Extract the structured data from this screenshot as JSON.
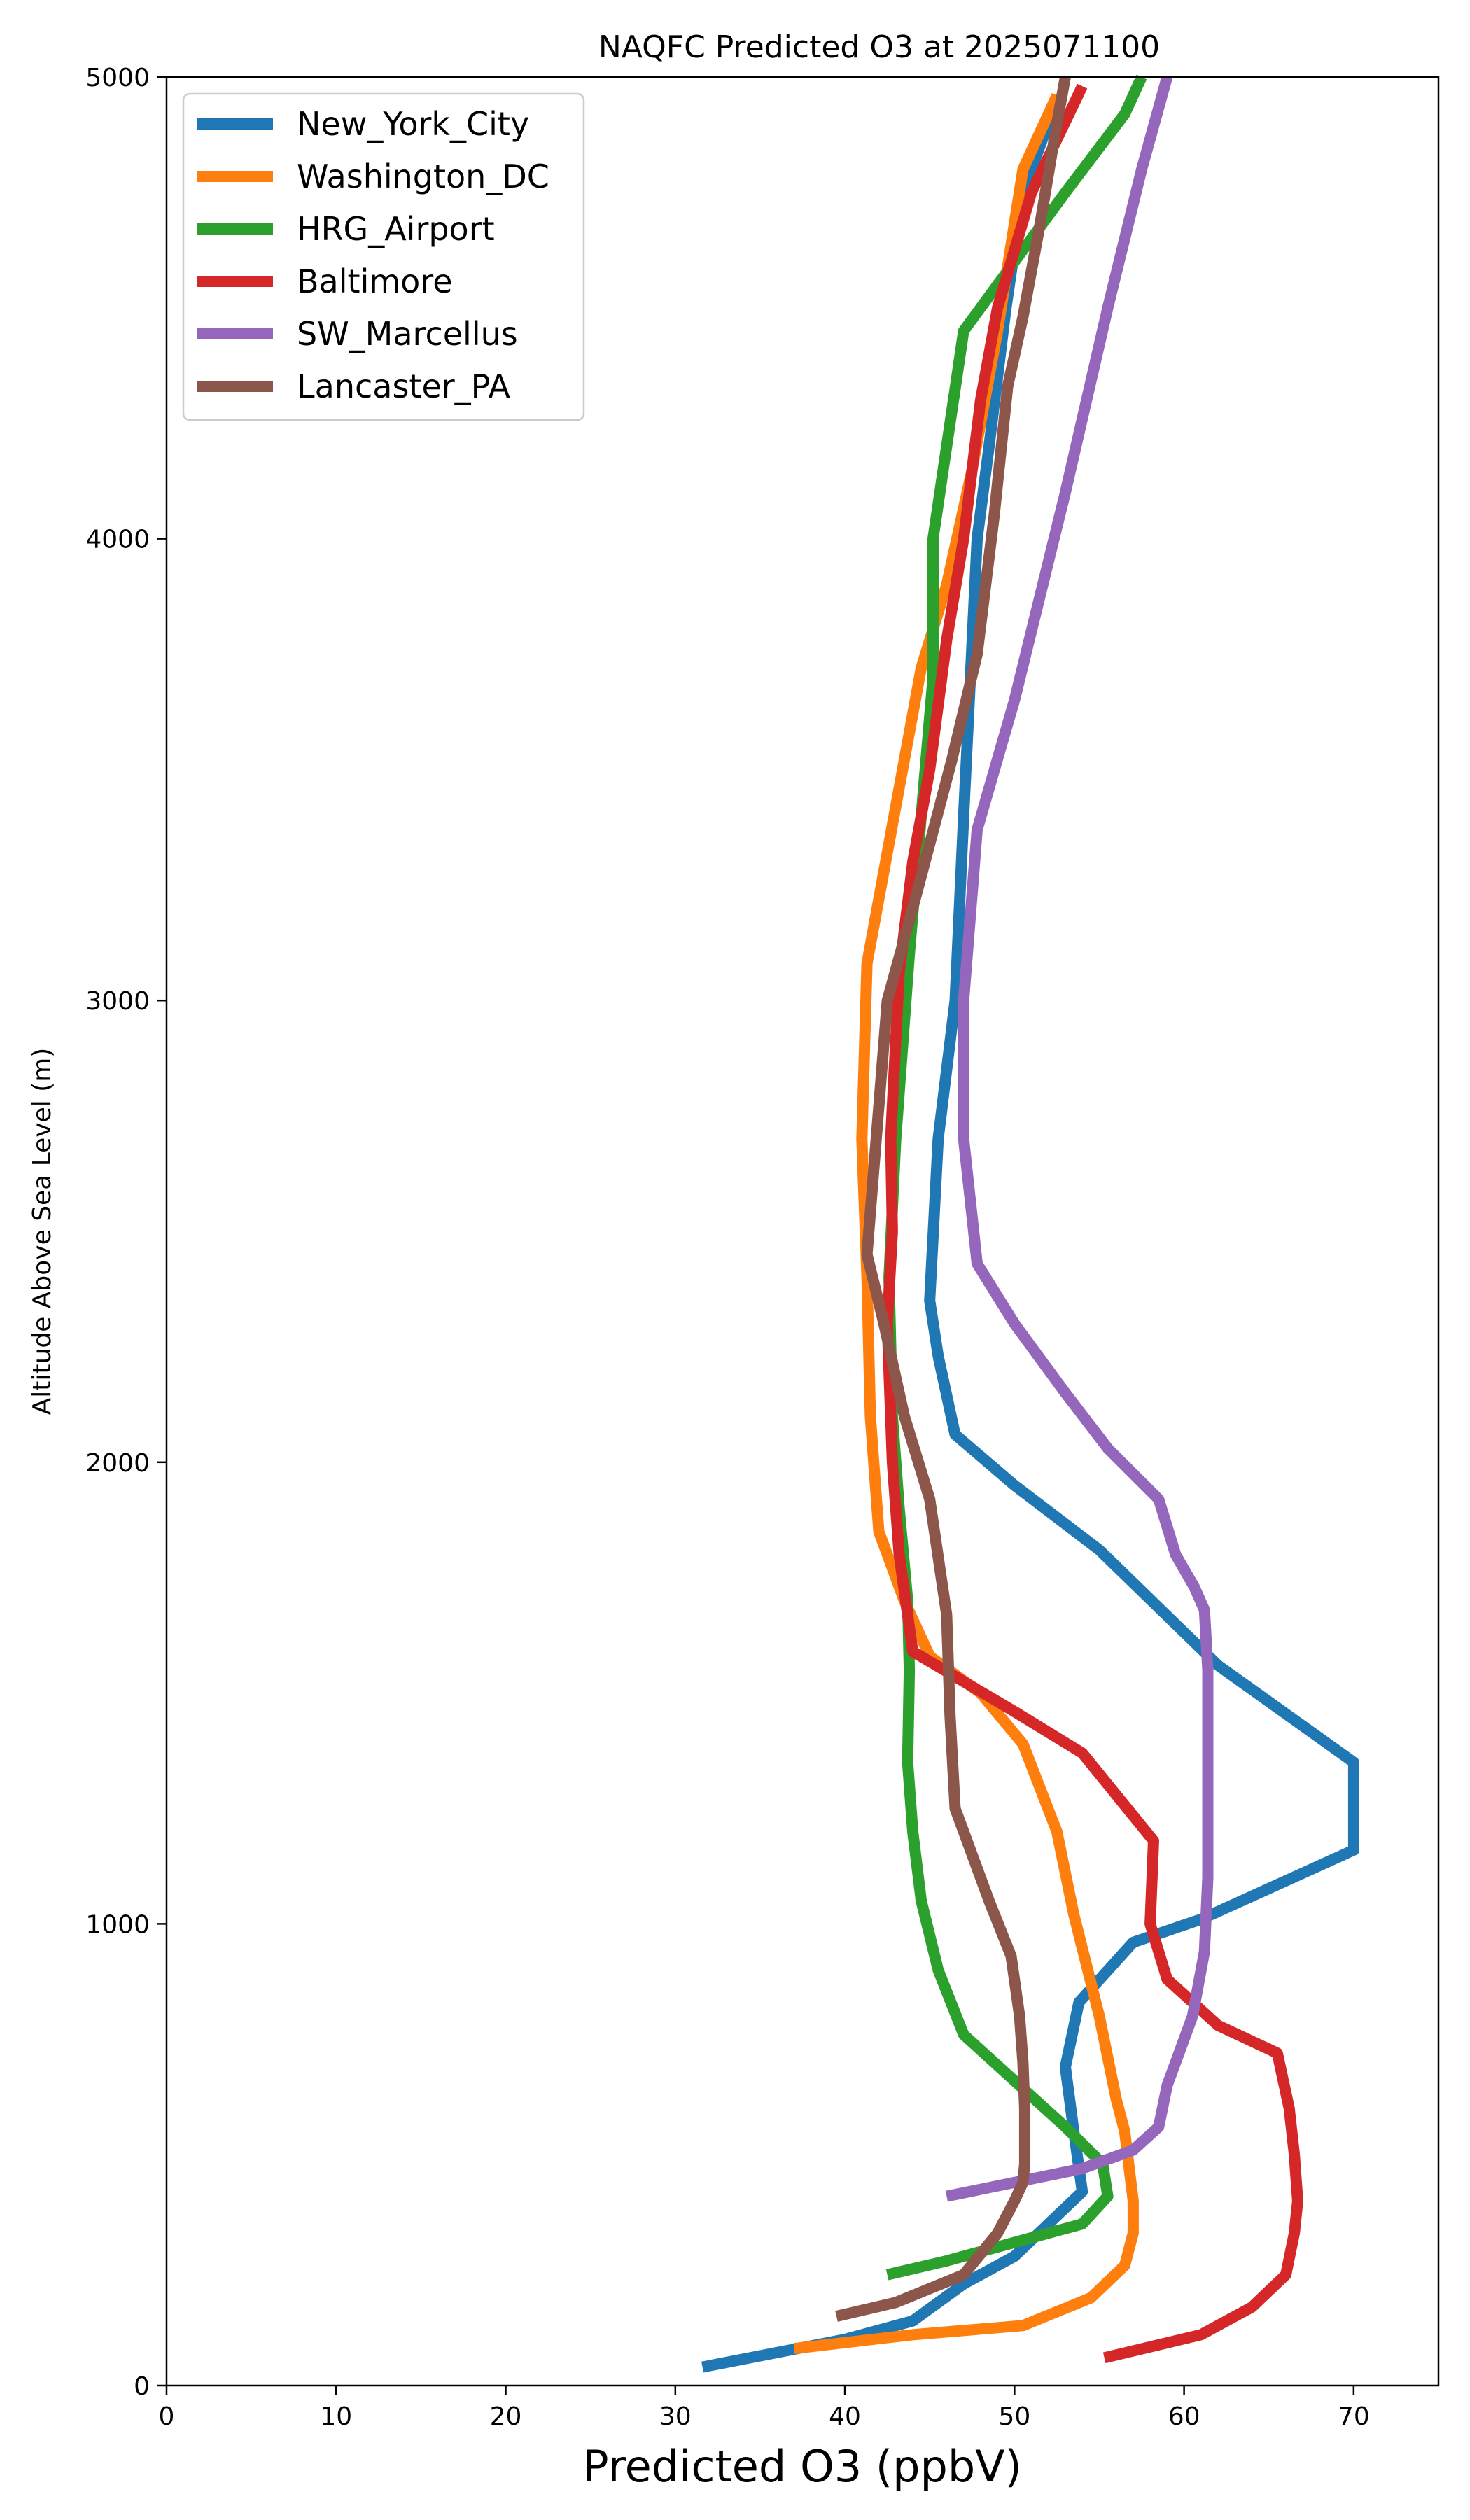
{
  "chart_data": {
    "type": "line",
    "title": "NAQFC Predicted O3 at 2025071100",
    "xlabel": "Predicted O3 (ppbV)",
    "ylabel": "Altitude Above Sea Level (m)",
    "xlim": [
      0,
      75
    ],
    "ylim": [
      0,
      5000
    ],
    "xticks": [
      0,
      10,
      20,
      30,
      40,
      50,
      60,
      70
    ],
    "yticks": [
      0,
      1000,
      2000,
      3000,
      4000,
      5000
    ],
    "x_tick_labels": [
      "0",
      "10",
      "20",
      "30",
      "40",
      "50",
      "60",
      "70"
    ],
    "y_tick_labels": [
      "0",
      "1000",
      "2000",
      "3000",
      "4000",
      "5000"
    ],
    "grid": false,
    "legend_position": "top-left",
    "series": [
      {
        "name": "New_York_City",
        "color": "#1f77b4",
        "points": [
          [
            31.6,
            40
          ],
          [
            40,
            100
          ],
          [
            44,
            140
          ],
          [
            47,
            220
          ],
          [
            50,
            280
          ],
          [
            52,
            350
          ],
          [
            54,
            420
          ],
          [
            53.5,
            550
          ],
          [
            53,
            690
          ],
          [
            53.8,
            830
          ],
          [
            57,
            960
          ],
          [
            61,
            1010
          ],
          [
            70,
            1160
          ],
          [
            70,
            1350
          ],
          [
            62,
            1560
          ],
          [
            55,
            1810
          ],
          [
            50,
            1950
          ],
          [
            46.5,
            2060
          ],
          [
            45.5,
            2230
          ],
          [
            45,
            2350
          ],
          [
            45.5,
            2700
          ],
          [
            46.5,
            3000
          ],
          [
            47,
            3400
          ],
          [
            47.8,
            4000
          ],
          [
            48.5,
            4200
          ],
          [
            49.5,
            4500
          ],
          [
            50.5,
            4750
          ],
          [
            52.5,
            4950
          ]
        ]
      },
      {
        "name": "Washington_DC",
        "color": "#ff7f0e",
        "points": [
          [
            37,
            80
          ],
          [
            44,
            110
          ],
          [
            50.5,
            130
          ],
          [
            54.5,
            190
          ],
          [
            56.5,
            260
          ],
          [
            57,
            330
          ],
          [
            57,
            400
          ],
          [
            56.5,
            550
          ],
          [
            56,
            620
          ],
          [
            55,
            800
          ],
          [
            53.5,
            1020
          ],
          [
            52.5,
            1200
          ],
          [
            50.5,
            1390
          ],
          [
            48,
            1500
          ],
          [
            45,
            1580
          ],
          [
            43.5,
            1700
          ],
          [
            42,
            1850
          ],
          [
            41.5,
            2100
          ],
          [
            41.3,
            2400
          ],
          [
            41,
            2700
          ],
          [
            41.3,
            3080
          ],
          [
            43,
            3420
          ],
          [
            44.5,
            3720
          ],
          [
            46,
            3900
          ],
          [
            47.5,
            4150
          ],
          [
            49,
            4450
          ],
          [
            50.5,
            4800
          ],
          [
            52.5,
            4960
          ]
        ]
      },
      {
        "name": "HRG_Airport",
        "color": "#2ca02c",
        "points": [
          [
            42.5,
            240
          ],
          [
            46,
            270
          ],
          [
            50,
            310
          ],
          [
            54,
            350
          ],
          [
            55.5,
            410
          ],
          [
            55.2,
            480
          ],
          [
            53,
            560
          ],
          [
            50,
            660
          ],
          [
            47,
            760
          ],
          [
            45.5,
            900
          ],
          [
            44.5,
            1050
          ],
          [
            44,
            1200
          ],
          [
            43.7,
            1350
          ],
          [
            43.8,
            1550
          ],
          [
            43.7,
            1700
          ],
          [
            43.2,
            1900
          ],
          [
            42.8,
            2100
          ],
          [
            42.6,
            2400
          ],
          [
            43,
            2700
          ],
          [
            43.8,
            3100
          ],
          [
            44.5,
            3400
          ],
          [
            45.2,
            3700
          ],
          [
            45.2,
            4000
          ],
          [
            46,
            4200
          ],
          [
            47,
            4450
          ],
          [
            50,
            4600
          ],
          [
            53,
            4750
          ],
          [
            56.5,
            4920
          ],
          [
            57.5,
            5000
          ]
        ]
      },
      {
        "name": "Baltimore",
        "color": "#d62728",
        "points": [
          [
            55.3,
            60
          ],
          [
            61,
            110
          ],
          [
            64,
            170
          ],
          [
            66,
            240
          ],
          [
            66.5,
            330
          ],
          [
            66.7,
            400
          ],
          [
            66.5,
            500
          ],
          [
            66.2,
            600
          ],
          [
            65.5,
            720
          ],
          [
            62,
            780
          ],
          [
            59,
            880
          ],
          [
            58,
            1000
          ],
          [
            58.2,
            1180
          ],
          [
            54,
            1370
          ],
          [
            50,
            1460
          ],
          [
            44,
            1590
          ],
          [
            43.2,
            1800
          ],
          [
            42.8,
            2000
          ],
          [
            42.5,
            2300
          ],
          [
            42.8,
            2500
          ],
          [
            42.7,
            2700
          ],
          [
            43.2,
            3060
          ],
          [
            44,
            3300
          ],
          [
            45,
            3500
          ],
          [
            46,
            3780
          ],
          [
            47,
            4000
          ],
          [
            48,
            4300
          ],
          [
            49,
            4500
          ],
          [
            51,
            4750
          ],
          [
            54,
            4980
          ]
        ]
      },
      {
        "name": "SW_Marcellus",
        "color": "#9467bd",
        "points": [
          [
            46,
            410
          ],
          [
            50,
            440
          ],
          [
            54,
            470
          ],
          [
            57,
            510
          ],
          [
            58.5,
            560
          ],
          [
            59,
            650
          ],
          [
            59.5,
            700
          ],
          [
            60.5,
            800
          ],
          [
            61.2,
            940
          ],
          [
            61.4,
            1100
          ],
          [
            61.4,
            1300
          ],
          [
            61.4,
            1550
          ],
          [
            61.2,
            1680
          ],
          [
            60.6,
            1730
          ],
          [
            59.5,
            1800
          ],
          [
            58.5,
            1920
          ],
          [
            55.5,
            2030
          ],
          [
            53,
            2150
          ],
          [
            50,
            2300
          ],
          [
            47.8,
            2430
          ],
          [
            47,
            2700
          ],
          [
            47,
            3000
          ],
          [
            47.8,
            3370
          ],
          [
            50,
            3650
          ],
          [
            53,
            4100
          ],
          [
            55.5,
            4500
          ],
          [
            57.5,
            4800
          ],
          [
            59,
            5000
          ]
        ]
      },
      {
        "name": "Lancaster_PA",
        "color": "#8c564b",
        "points": [
          [
            39.5,
            150
          ],
          [
            43,
            180
          ],
          [
            47,
            240
          ],
          [
            49,
            330
          ],
          [
            50,
            400
          ],
          [
            50.5,
            440
          ],
          [
            50.6,
            480
          ],
          [
            50.6,
            600
          ],
          [
            50.5,
            700
          ],
          [
            50.3,
            800
          ],
          [
            49.8,
            930
          ],
          [
            48.5,
            1050
          ],
          [
            47.5,
            1150
          ],
          [
            46.5,
            1250
          ],
          [
            46.2,
            1450
          ],
          [
            46,
            1670
          ],
          [
            45,
            1920
          ],
          [
            43.5,
            2100
          ],
          [
            42.3,
            2300
          ],
          [
            41.3,
            2450
          ],
          [
            42,
            2770
          ],
          [
            42.5,
            3000
          ],
          [
            44,
            3200
          ],
          [
            46.3,
            3520
          ],
          [
            47.8,
            3750
          ],
          [
            48.8,
            4050
          ],
          [
            49.6,
            4330
          ],
          [
            50.5,
            4480
          ],
          [
            51.5,
            4680
          ],
          [
            52.5,
            4900
          ],
          [
            53,
            5000
          ]
        ]
      }
    ]
  }
}
